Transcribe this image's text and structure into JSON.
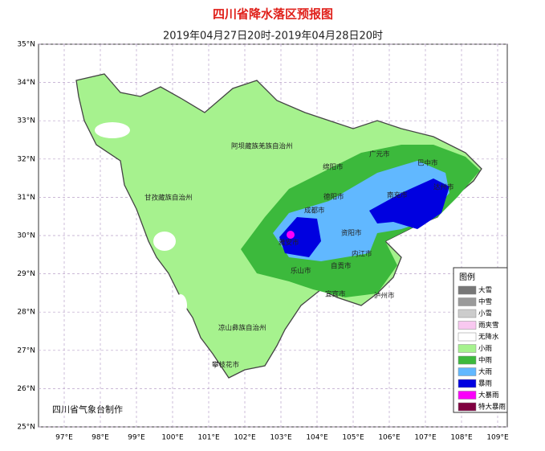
{
  "title": "四川省降水落区预报图",
  "subtitle": "2019年04月27日20时-2019年04月28日20时",
  "credit": "四川省气象台制作",
  "lat_ticks": [
    {
      "value": 35,
      "label": "35°N"
    },
    {
      "value": 34,
      "label": "34°N"
    },
    {
      "value": 33,
      "label": "33°N"
    },
    {
      "value": 32,
      "label": "32°N"
    },
    {
      "value": 31,
      "label": "31°N"
    },
    {
      "value": 30,
      "label": "30°N"
    },
    {
      "value": 29,
      "label": "29°N"
    },
    {
      "value": 28,
      "label": "28°N"
    },
    {
      "value": 27,
      "label": "27°N"
    },
    {
      "value": 26,
      "label": "26°N"
    },
    {
      "value": 25,
      "label": "25°N"
    }
  ],
  "lon_ticks": [
    {
      "value": 97,
      "label": "97°E"
    },
    {
      "value": 98,
      "label": "98°E"
    },
    {
      "value": 99,
      "label": "99°E"
    },
    {
      "value": 100,
      "label": "100°E"
    },
    {
      "value": 101,
      "label": "101°E"
    },
    {
      "value": 102,
      "label": "102°E"
    },
    {
      "value": 103,
      "label": "103°E"
    },
    {
      "value": 104,
      "label": "104°E"
    },
    {
      "value": 105,
      "label": "105°E"
    },
    {
      "value": 106,
      "label": "106°E"
    },
    {
      "value": 107,
      "label": "107°E"
    },
    {
      "value": 108,
      "label": "108°E"
    },
    {
      "value": 109,
      "label": "109°E"
    }
  ],
  "cities": [
    "阿坝藏族羌族自治州",
    "甘孜藏族自治州",
    "广元市",
    "绵阳市",
    "巴中市",
    "德阳市",
    "南充市",
    "达州市",
    "成都市",
    "资阳市",
    "雅安市",
    "乐山市",
    "内江市",
    "自贡市",
    "宜宾市",
    "泸州市",
    "凉山彝族自治州",
    "攀枝花市"
  ],
  "legend": {
    "title": "图例",
    "items": [
      {
        "label": "大雪",
        "color": "#777777"
      },
      {
        "label": "中雪",
        "color": "#9a9a9a"
      },
      {
        "label": "小雪",
        "color": "#cccccc"
      },
      {
        "label": "雨夹雪",
        "color": "#f8c8f0"
      },
      {
        "label": "无降水",
        "color": "#ffffff"
      },
      {
        "label": "小雨",
        "color": "#a6f28e"
      },
      {
        "label": "中雨",
        "color": "#3cb93c"
      },
      {
        "label": "大雨",
        "color": "#61b8ff"
      },
      {
        "label": "暴雨",
        "color": "#0000e0"
      },
      {
        "label": "大暴雨",
        "color": "#fa00fa"
      },
      {
        "label": "特大暴雨",
        "color": "#800040"
      }
    ]
  }
}
